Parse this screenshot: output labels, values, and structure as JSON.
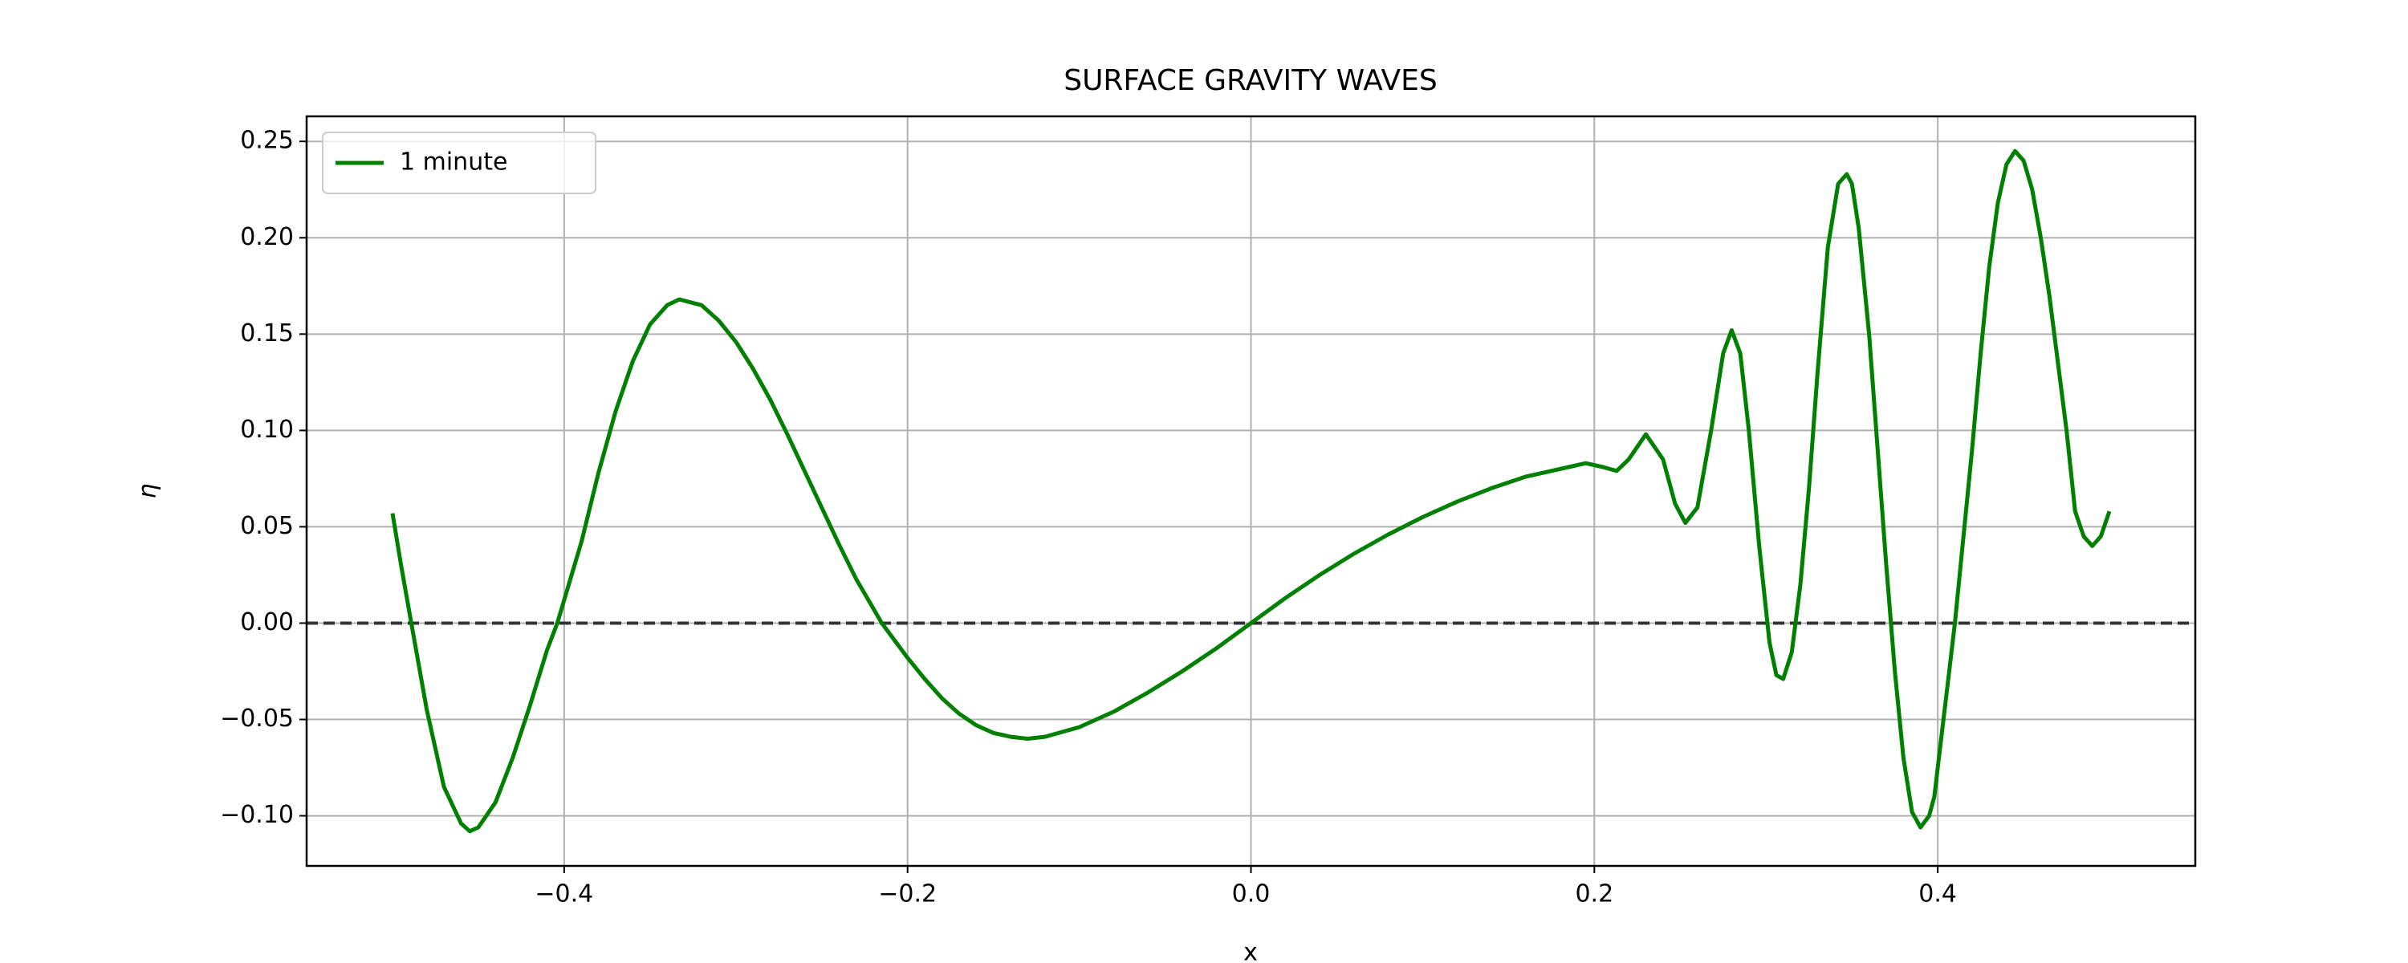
{
  "chart_data": {
    "type": "line",
    "title": "SURFACE GRAVITY WAVES",
    "x_label": "x",
    "y_label": "η",
    "x": [
      -0.5,
      -0.495,
      -0.49,
      -0.48,
      -0.47,
      -0.46,
      -0.455,
      -0.45,
      -0.44,
      -0.43,
      -0.42,
      -0.41,
      -0.404,
      -0.39,
      -0.38,
      -0.37,
      -0.36,
      -0.35,
      -0.34,
      -0.333,
      -0.32,
      -0.31,
      -0.3,
      -0.29,
      -0.28,
      -0.27,
      -0.26,
      -0.25,
      -0.24,
      -0.23,
      -0.215,
      -0.2,
      -0.19,
      -0.18,
      -0.17,
      -0.16,
      -0.15,
      -0.14,
      -0.13,
      -0.12,
      -0.1,
      -0.08,
      -0.06,
      -0.04,
      -0.02,
      0.0,
      0.02,
      0.04,
      0.06,
      0.08,
      0.1,
      0.12,
      0.14,
      0.16,
      0.175,
      0.185,
      0.195,
      0.205,
      0.213,
      0.22,
      0.23,
      0.24,
      0.247,
      0.253,
      0.26,
      0.268,
      0.275,
      0.28,
      0.285,
      0.29,
      0.296,
      0.302,
      0.306,
      0.31,
      0.315,
      0.32,
      0.325,
      0.33,
      0.336,
      0.342,
      0.347,
      0.35,
      0.354,
      0.36,
      0.365,
      0.37,
      0.375,
      0.38,
      0.385,
      0.39,
      0.395,
      0.398,
      0.402,
      0.406,
      0.41,
      0.415,
      0.42,
      0.425,
      0.43,
      0.435,
      0.44,
      0.445,
      0.45,
      0.455,
      0.46,
      0.465,
      0.47,
      0.475,
      0.48,
      0.485,
      0.49,
      0.495,
      0.5
    ],
    "series": [
      {
        "name": "1 minute",
        "color": "#008000",
        "values": [
          0.057,
          0.03,
          0.005,
          -0.045,
          -0.085,
          -0.104,
          -0.108,
          -0.106,
          -0.093,
          -0.07,
          -0.043,
          -0.014,
          0.0,
          0.042,
          0.078,
          0.11,
          0.136,
          0.155,
          0.165,
          0.168,
          0.165,
          0.157,
          0.146,
          0.132,
          0.116,
          0.098,
          0.079,
          0.06,
          0.041,
          0.023,
          0.0,
          -0.018,
          -0.029,
          -0.039,
          -0.047,
          -0.053,
          -0.057,
          -0.059,
          -0.06,
          -0.059,
          -0.054,
          -0.046,
          -0.036,
          -0.025,
          -0.013,
          0.0,
          0.013,
          0.025,
          0.036,
          0.046,
          0.055,
          0.063,
          0.07,
          0.076,
          0.079,
          0.081,
          0.083,
          0.081,
          0.079,
          0.085,
          0.098,
          0.085,
          0.062,
          0.052,
          0.06,
          0.1,
          0.14,
          0.152,
          0.14,
          0.1,
          0.04,
          -0.01,
          -0.027,
          -0.029,
          -0.015,
          0.02,
          0.07,
          0.13,
          0.195,
          0.228,
          0.233,
          0.228,
          0.205,
          0.15,
          0.09,
          0.03,
          -0.025,
          -0.07,
          -0.098,
          -0.106,
          -0.1,
          -0.09,
          -0.06,
          -0.03,
          0.0,
          0.045,
          0.09,
          0.14,
          0.185,
          0.218,
          0.238,
          0.245,
          0.24,
          0.225,
          0.2,
          0.17,
          0.135,
          0.1,
          0.058,
          0.045,
          0.04,
          0.045,
          0.058
        ]
      }
    ],
    "xlim": [
      -0.55,
      0.55
    ],
    "ylim": [
      -0.126,
      0.263
    ],
    "xticks": [
      {
        "value": -0.4,
        "label": "−0.4"
      },
      {
        "value": -0.2,
        "label": "−0.2"
      },
      {
        "value": 0.0,
        "label": "0.0"
      },
      {
        "value": 0.2,
        "label": "0.2"
      },
      {
        "value": 0.4,
        "label": "0.4"
      }
    ],
    "yticks": [
      {
        "value": -0.1,
        "label": "−0.10"
      },
      {
        "value": -0.05,
        "label": "−0.05"
      },
      {
        "value": 0,
        "label": "0.00"
      },
      0.05,
      {
        "value": 0.1,
        "label": "0.10"
      },
      0.15,
      {
        "value": 0.2,
        "label": "0.20"
      },
      0.25
    ],
    "grid": true,
    "legend": "upper-left",
    "reference_line": {
      "y": 0,
      "color": "#333333",
      "style": "dashed"
    }
  }
}
